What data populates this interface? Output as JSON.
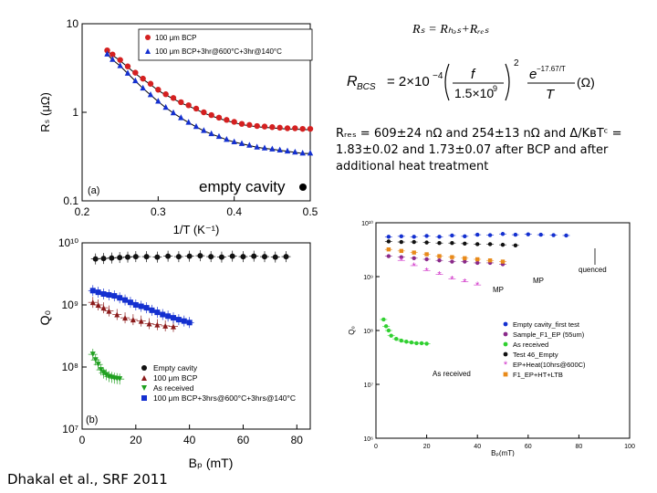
{
  "header_formula": "Rₛ = Rₕₔₛ+Rᵣₑₛ",
  "formula_text": {
    "lhs": "R",
    "lhs_sub": "BCS",
    "coef": "= 2×10",
    "coef_exp": "−4",
    "frac_num": "f",
    "frac_den": "1.5×10",
    "frac_den_exp": "9",
    "power": "2",
    "exp_num": "e",
    "exp_sup": "−17.67/T",
    "exp_den": "T",
    "unit": "(Ω)"
  },
  "note_lines": [
    "Rᵣₑₛ = 609±24 nΩ and 254±13 nΩ and Δ/KʙTᶜ =",
    "1.83±0.02 and 1.73±0.07 after BCP and after",
    "additional heat treatment"
  ],
  "footer": "Dhakal et al., SRF 2011",
  "colors": {
    "red": "#d42020",
    "blue": "#1430d0",
    "black": "#111111",
    "darkred": "#8b1a1a",
    "green": "#20a020",
    "orange": "#e88a1a",
    "magenta": "#d030c8",
    "purple": "#8a2a8a",
    "lime": "#30d030"
  },
  "chart_data": [
    {
      "type": "scatter",
      "panel_label": "(a)",
      "annotation": "empty cavity",
      "xlabel": "1/T (K⁻¹)",
      "ylabel": "Rₛ (μΩ)",
      "xlim": [
        0.2,
        0.5
      ],
      "ylim": [
        0.1,
        10
      ],
      "yscale": "log",
      "xticks": [
        "0.2",
        "0.3",
        "0.4",
        "0.5"
      ],
      "yticks": [
        "0.1",
        "1",
        "10"
      ],
      "legend": [
        "100 μm BCP",
        "100 μm BCP+3hr@600°C+3hr@140°C"
      ],
      "series": [
        {
          "name": "100 μm BCP",
          "values_x": [
            0.233,
            0.24,
            0.25,
            0.26,
            0.27,
            0.28,
            0.29,
            0.3,
            0.31,
            0.32,
            0.33,
            0.34,
            0.35,
            0.36,
            0.37,
            0.38,
            0.39,
            0.4,
            0.41,
            0.42,
            0.43,
            0.44,
            0.45,
            0.46,
            0.47,
            0.48,
            0.49,
            0.5
          ],
          "values_y": [
            5.0,
            4.5,
            3.9,
            3.3,
            2.8,
            2.4,
            2.1,
            1.8,
            1.6,
            1.45,
            1.3,
            1.2,
            1.1,
            1.0,
            0.93,
            0.87,
            0.82,
            0.78,
            0.74,
            0.72,
            0.7,
            0.69,
            0.68,
            0.67,
            0.66,
            0.66,
            0.65,
            0.65
          ]
        },
        {
          "name": "100 μm BCP+3hr@600°C+3hr@140°C",
          "values_x": [
            0.233,
            0.24,
            0.25,
            0.26,
            0.27,
            0.28,
            0.29,
            0.3,
            0.31,
            0.32,
            0.33,
            0.34,
            0.35,
            0.36,
            0.37,
            0.38,
            0.39,
            0.4,
            0.41,
            0.42,
            0.43,
            0.44,
            0.45,
            0.46,
            0.47,
            0.48,
            0.49,
            0.5
          ],
          "values_y": [
            4.6,
            4.0,
            3.4,
            2.8,
            2.3,
            1.9,
            1.6,
            1.35,
            1.15,
            1.0,
            0.88,
            0.78,
            0.7,
            0.63,
            0.58,
            0.54,
            0.5,
            0.47,
            0.45,
            0.43,
            0.41,
            0.4,
            0.39,
            0.38,
            0.37,
            0.36,
            0.35,
            0.35
          ]
        }
      ]
    },
    {
      "type": "scatter",
      "panel_label": "(b)",
      "xlabel": "Bₚ (mT)",
      "ylabel": "Q₀",
      "xlim": [
        0,
        85
      ],
      "ylim": [
        10000000.0,
        10000000000.0
      ],
      "yscale": "log",
      "xticks": [
        "0",
        "20",
        "40",
        "60",
        "80"
      ],
      "yticks": [
        "10⁷",
        "10⁸",
        "10⁹",
        "10¹⁰"
      ],
      "legend": [
        "Empty cavity",
        "100 μm BCP",
        "As received",
        "100 μm BCP+3hrs@600°C+3hrs@140°C"
      ],
      "series": [
        {
          "name": "Empty cavity",
          "values_x": [
            5,
            8,
            11,
            14,
            17,
            20,
            24,
            28,
            32,
            36,
            40,
            44,
            48,
            52,
            56,
            60,
            64,
            68,
            72,
            76
          ],
          "values_y": [
            5500000000.0,
            5600000000.0,
            5700000000.0,
            5800000000.0,
            5900000000.0,
            6000000000.0,
            6000000000.0,
            5900000000.0,
            6100000000.0,
            6000000000.0,
            6100000000.0,
            6200000000.0,
            6000000000.0,
            5900000000.0,
            6100000000.0,
            6000000000.0,
            6100000000.0,
            6000000000.0,
            5900000000.0,
            6000000000.0
          ]
        },
        {
          "name": "100 μm BCP",
          "values_x": [
            4,
            6,
            8,
            10,
            13,
            16,
            19,
            22,
            25,
            28,
            31,
            34
          ],
          "values_y": [
            1100000000.0,
            1000000000.0,
            900000000.0,
            800000000.0,
            700000000.0,
            620000000.0,
            580000000.0,
            550000000.0,
            500000000.0,
            480000000.0,
            460000000.0,
            450000000.0
          ]
        },
        {
          "name": "As received",
          "values_x": [
            4,
            5,
            6,
            7,
            8,
            9,
            10,
            11,
            12,
            13,
            14
          ],
          "values_y": [
            160000000.0,
            130000000.0,
            110000000.0,
            90000000.0,
            80000000.0,
            75000000.0,
            70000000.0,
            68000000.0,
            66000000.0,
            65000000.0,
            64000000.0
          ]
        },
        {
          "name": "100 μm BCP+3hrs@600°C+3hrs@140°C",
          "values_x": [
            4,
            6,
            8,
            10,
            12,
            14,
            16,
            18,
            20,
            22,
            24,
            26,
            28,
            30,
            32,
            34,
            36,
            38,
            40
          ],
          "values_y": [
            1700000000.0,
            1600000000.0,
            1500000000.0,
            1450000000.0,
            1400000000.0,
            1300000000.0,
            1200000000.0,
            1100000000.0,
            1000000000.0,
            950000000.0,
            900000000.0,
            820000000.0,
            760000000.0,
            700000000.0,
            660000000.0,
            620000000.0,
            580000000.0,
            550000000.0,
            520000000.0
          ]
        }
      ]
    },
    {
      "type": "scatter",
      "xlabel": "Bₚ(mT)",
      "ylabel": "Q₀",
      "xlim": [
        0,
        100
      ],
      "ylim": [
        1000000.0,
        10000000000.0
      ],
      "yscale": "log",
      "xticks": [
        "0",
        "20",
        "40",
        "60",
        "80",
        "100"
      ],
      "yticks": [
        "10⁶",
        "10⁷",
        "10⁸",
        "10⁹",
        "10¹⁰"
      ],
      "annotations": [
        "quenced",
        "MP",
        "MP",
        "As received"
      ],
      "legend": [
        "Empty cavity_first test",
        "Sample_F1_EP (55um)",
        "As received",
        "Test 46_Empty",
        "EP+Heat(10hrs@600C)",
        "F1_EP+HT+LTB"
      ],
      "series": [
        {
          "name": "Empty cavity_first test",
          "values_x": [
            5,
            10,
            15,
            20,
            25,
            30,
            35,
            40,
            45,
            50,
            55,
            60,
            65,
            70,
            75
          ],
          "values_y": [
            5500000000.0,
            5600000000.0,
            5500000000.0,
            5700000000.0,
            5500000000.0,
            5800000000.0,
            5600000000.0,
            6000000000.0,
            5900000000.0,
            6200000000.0,
            6000000000.0,
            6100000000.0,
            6000000000.0,
            5900000000.0,
            5800000000.0
          ]
        },
        {
          "name": "Sample_F1_EP (55um)",
          "values_x": [
            5,
            10,
            15,
            20,
            25,
            30,
            35,
            40,
            45,
            50
          ],
          "values_y": [
            2400000000.0,
            2300000000.0,
            2200000000.0,
            2100000000.0,
            2000000000.0,
            1900000000.0,
            1900000000.0,
            1800000000.0,
            1800000000.0,
            1700000000.0
          ]
        },
        {
          "name": "As received",
          "values_x": [
            3,
            4,
            5,
            6,
            8,
            10,
            12,
            14,
            16,
            18,
            20
          ],
          "values_y": [
            160000000.0,
            120000000.0,
            100000000.0,
            80000000.0,
            70000000.0,
            65000000.0,
            62000000.0,
            60000000.0,
            58000000.0,
            58000000.0,
            57000000.0
          ]
        },
        {
          "name": "Test 46_Empty",
          "values_x": [
            5,
            10,
            15,
            20,
            25,
            30,
            35,
            40,
            45,
            50,
            55
          ],
          "values_y": [
            4500000000.0,
            4400000000.0,
            4400000000.0,
            4300000000.0,
            4200000000.0,
            4200000000.0,
            4100000000.0,
            4000000000.0,
            4000000000.0,
            3900000000.0,
            3800000000.0
          ]
        },
        {
          "name": "EP+Heat(10hrs@600C)",
          "values_x": [
            10,
            15,
            20,
            25,
            30,
            35,
            40
          ],
          "values_y": [
            2000000000.0,
            1600000000.0,
            1300000000.0,
            1100000000.0,
            900000000.0,
            800000000.0,
            700000000.0
          ]
        },
        {
          "name": "F1_EP+HT+LTB",
          "values_x": [
            5,
            10,
            15,
            20,
            25,
            30,
            35,
            40,
            45,
            50
          ],
          "values_y": [
            3200000000.0,
            3000000000.0,
            2800000000.0,
            2600000000.0,
            2400000000.0,
            2300000000.0,
            2200000000.0,
            2100000000.0,
            2000000000.0,
            1900000000.0
          ]
        }
      ]
    }
  ]
}
